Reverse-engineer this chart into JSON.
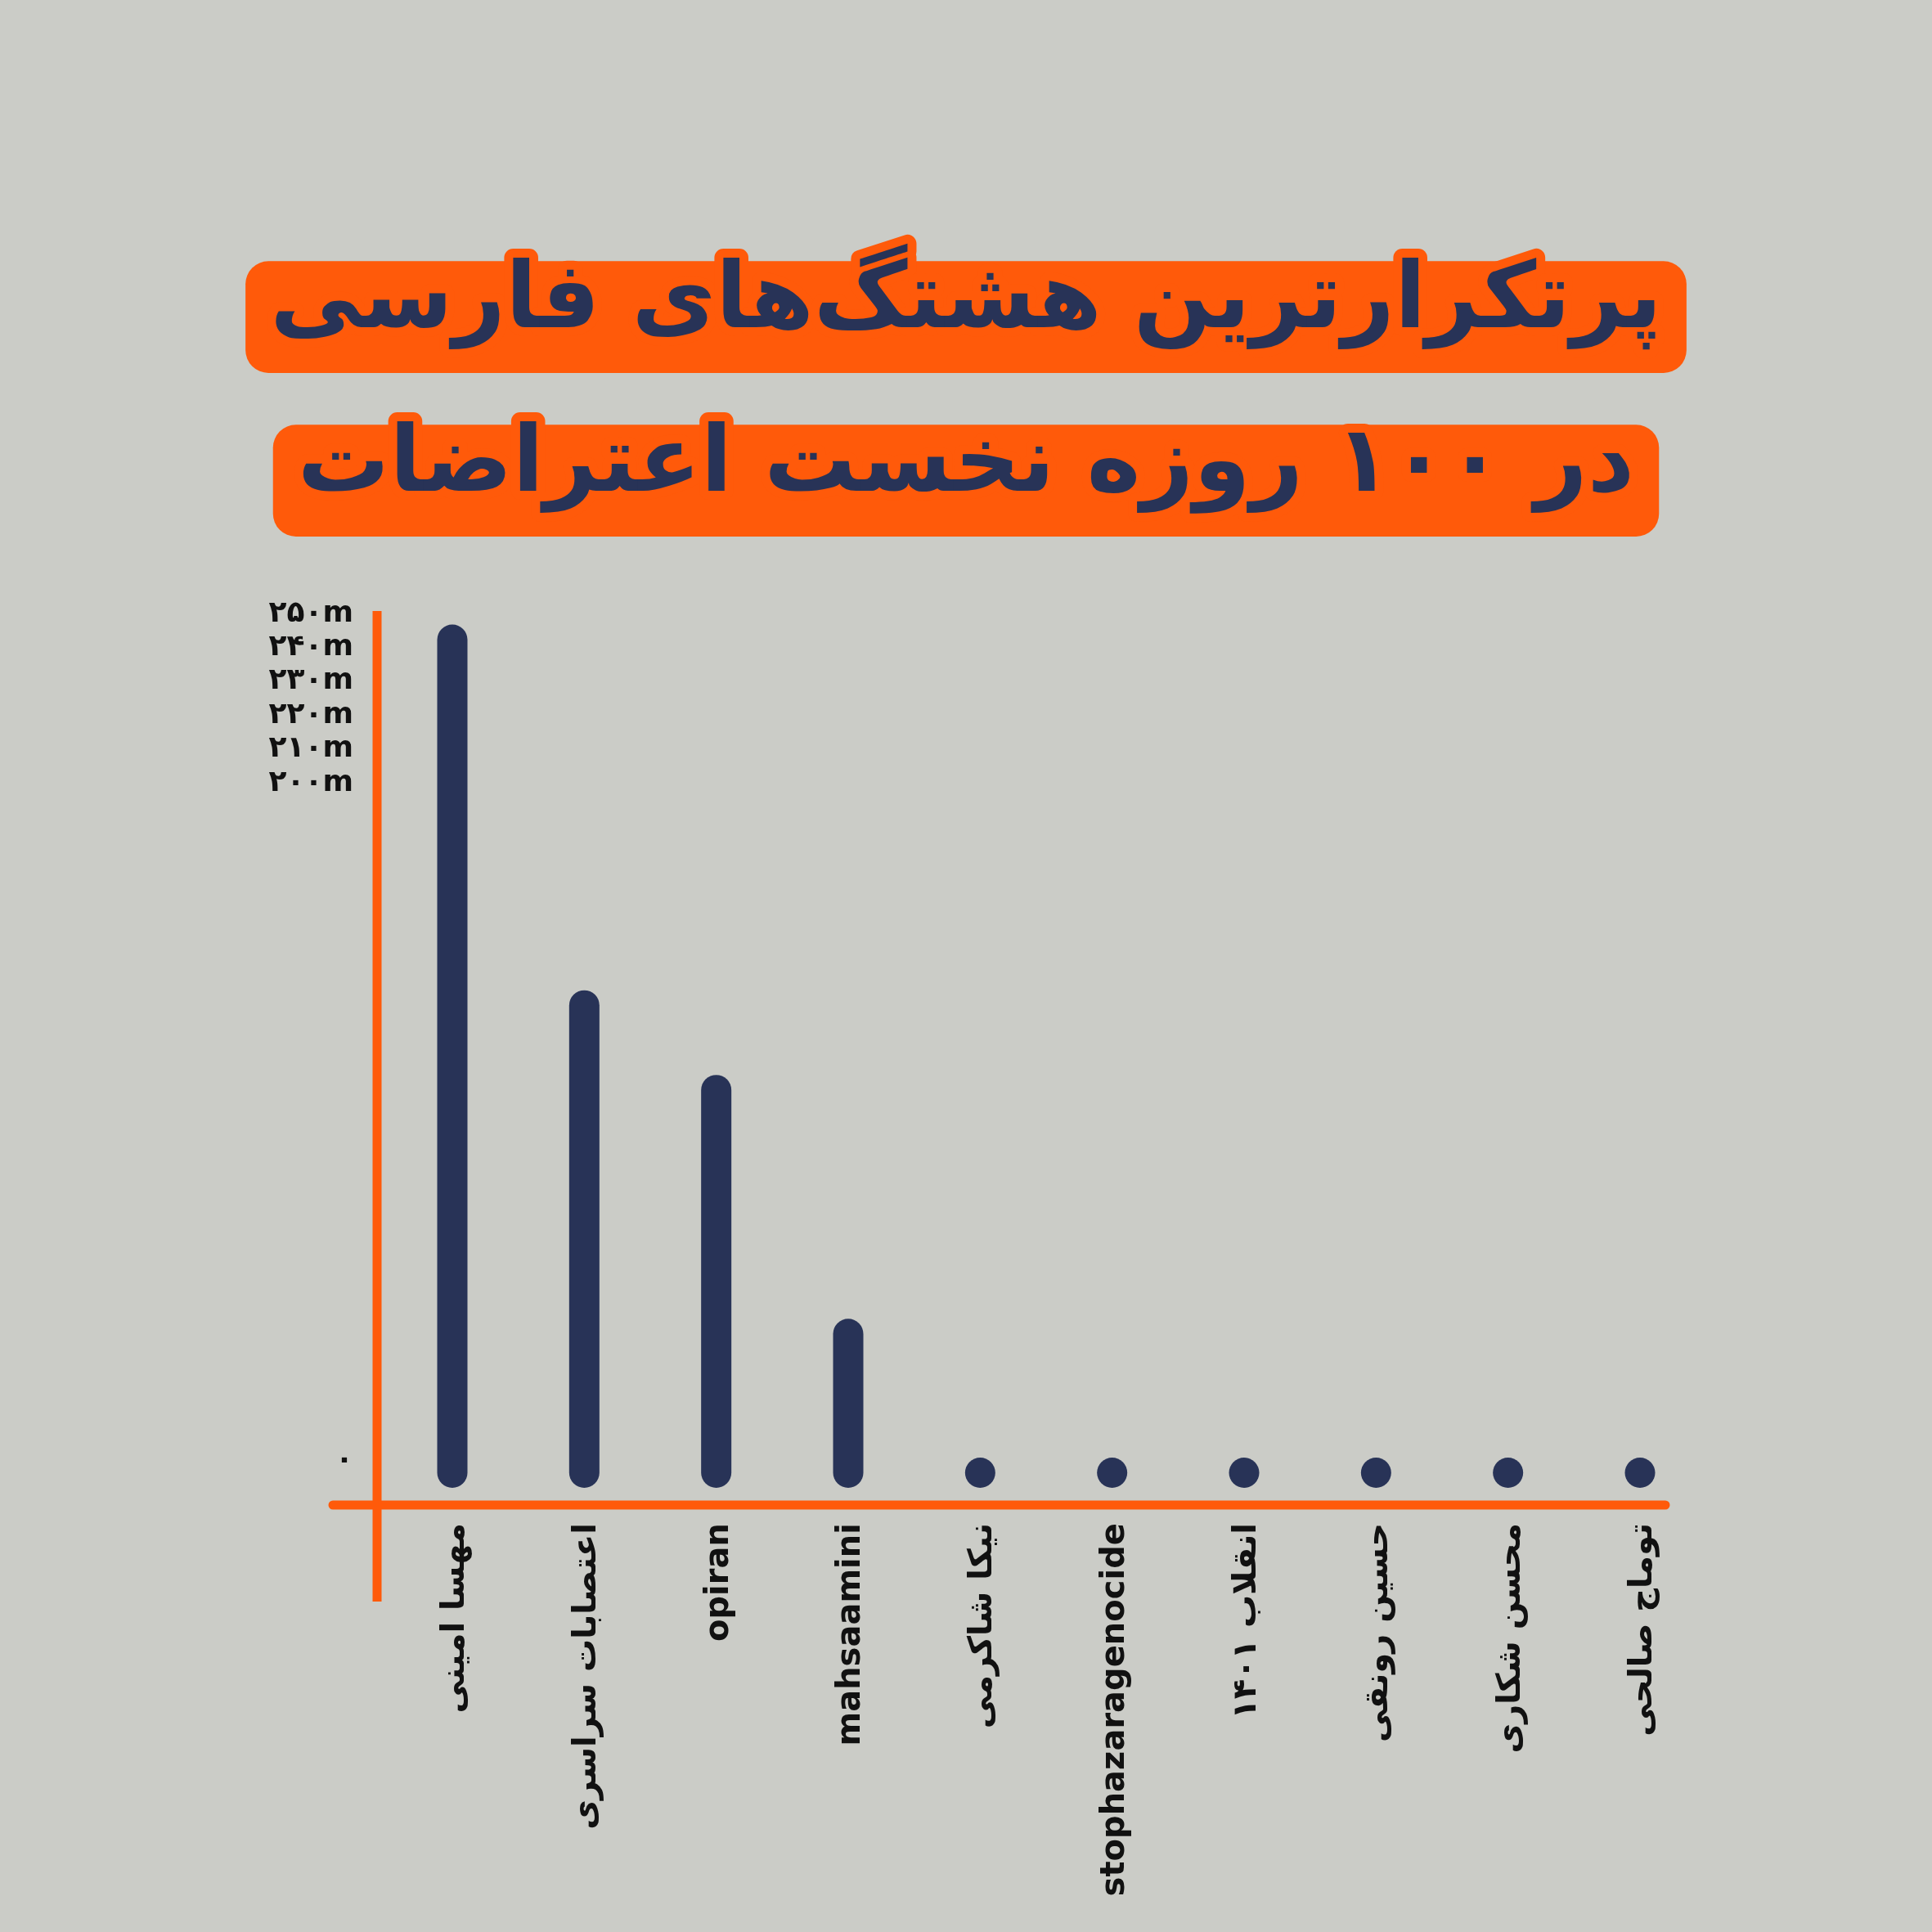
{
  "chart_data": {
    "type": "bar",
    "title": "پرتکرارترین هشتگ‌های فارسی",
    "subtitle": "در ۱۰۰ روزه نخست اعتراضات",
    "categories": [
      "مهسا امینی",
      "اعتصابات سراسری",
      "opiran",
      "mahsaamini",
      "نیکا شاکرمی",
      "stophazaragenocide",
      "انقلاب ۱۴۰۱",
      "حسین رونقی",
      "محسن شکاری",
      "توماج صالحی"
    ],
    "values": [
      246,
      138,
      113,
      41,
      0,
      0,
      0,
      0,
      0,
      0
    ],
    "color": "#283357",
    "ylim": [
      0,
      250
    ],
    "yticks": [
      {
        "value": 0,
        "label": "۰"
      },
      {
        "value": 200,
        "label": "۲۰۰m"
      },
      {
        "value": 210,
        "label": "۲۱۰m"
      },
      {
        "value": 220,
        "label": "۲۲۰m"
      },
      {
        "value": 230,
        "label": "۲۳۰m"
      },
      {
        "value": 240,
        "label": "۲۴۰m"
      },
      {
        "value": 250,
        "label": "۲۵۰m"
      }
    ]
  }
}
